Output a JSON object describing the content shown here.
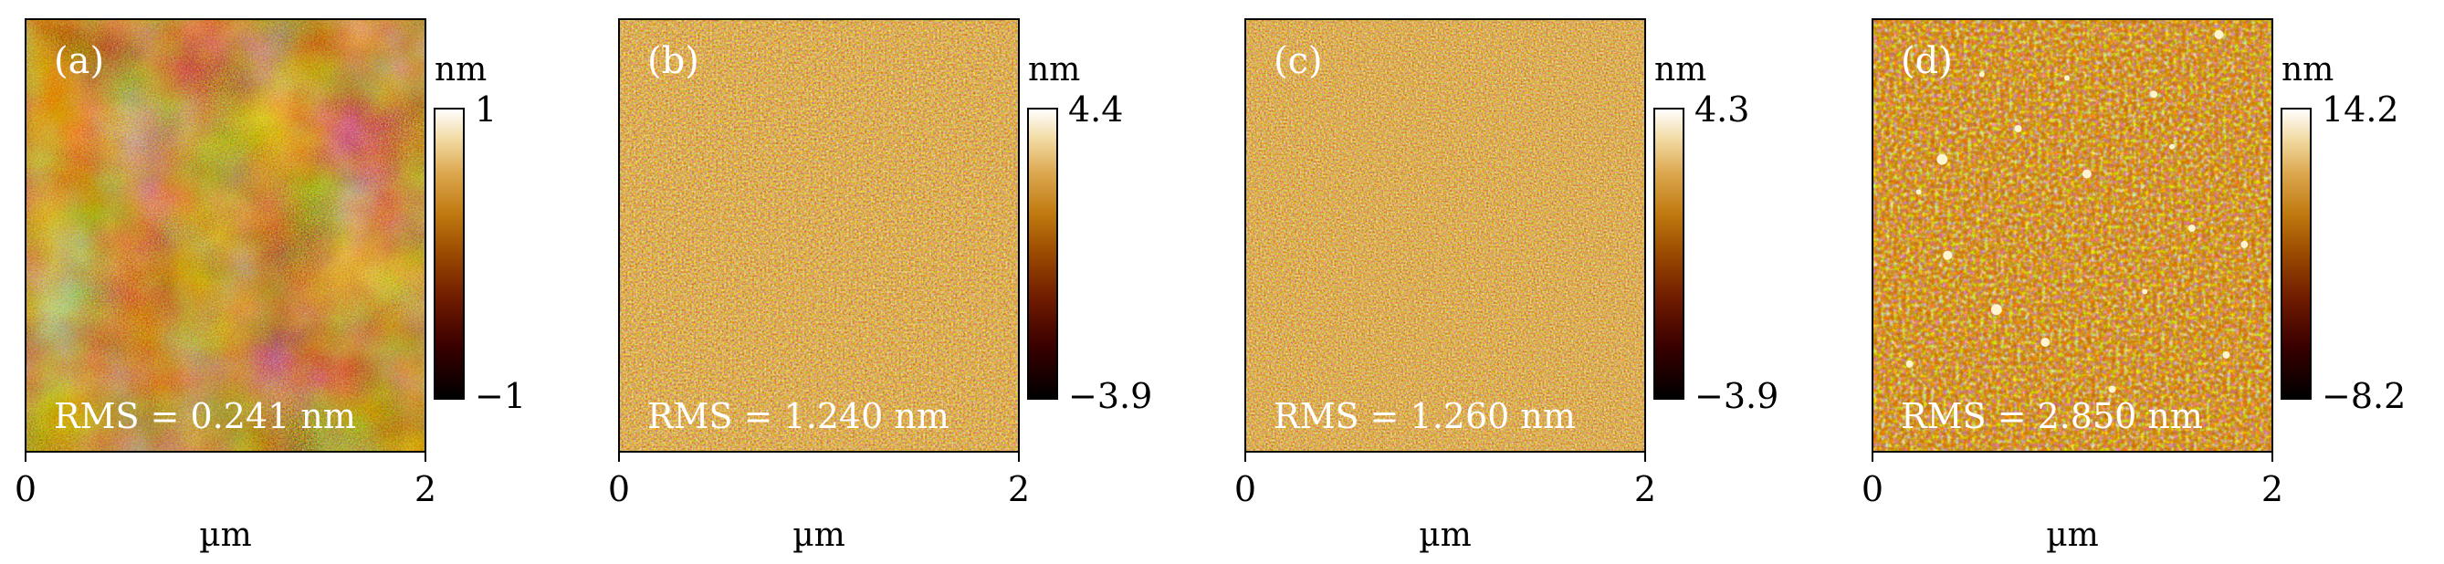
{
  "panels": [
    {
      "label": "(a)",
      "rms": "RMS = 0.241 nm",
      "unit": "nm",
      "cbar_max": "1",
      "cbar_min": "−1",
      "x_ticks": [
        "0",
        "2"
      ],
      "xlabel": "µm"
    },
    {
      "label": "(b)",
      "rms": "RMS = 1.240 nm",
      "unit": "nm",
      "cbar_max": "4.4",
      "cbar_min": "−3.9",
      "x_ticks": [
        "0",
        "2"
      ],
      "xlabel": "µm"
    },
    {
      "label": "(c)",
      "rms": "RMS = 1.260 nm",
      "unit": "nm",
      "cbar_max": "4.3",
      "cbar_min": "−3.9",
      "x_ticks": [
        "0",
        "2"
      ],
      "xlabel": "µm"
    },
    {
      "label": "(d)",
      "rms": "RMS = 2.850 nm",
      "unit": "nm",
      "cbar_max": "14.2",
      "cbar_min": "−8.2",
      "x_ticks": [
        "0",
        "2"
      ],
      "xlabel": "µm"
    }
  ],
  "colors": {
    "dark": "#2a0800",
    "mid": "#9a4a00",
    "light": "#f2dba4"
  }
}
